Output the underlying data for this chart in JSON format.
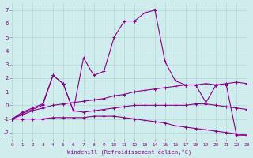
{
  "xlabel": "Windchill (Refroidissement éolien,°C)",
  "background_color": "#d0ecec",
  "line_color": "#880088",
  "xlim": [
    0,
    23
  ],
  "ylim": [
    -2.5,
    7.5
  ],
  "xticks": [
    0,
    1,
    2,
    3,
    4,
    5,
    6,
    7,
    8,
    9,
    10,
    11,
    12,
    13,
    14,
    15,
    16,
    17,
    18,
    19,
    20,
    21,
    22,
    23
  ],
  "yticks": [
    -2,
    -1,
    0,
    1,
    2,
    3,
    4,
    5,
    6,
    7
  ],
  "lines": [
    {
      "x": [
        0,
        1,
        2,
        3,
        4,
        5,
        6,
        7,
        8,
        9,
        10,
        11,
        12,
        13,
        14,
        15,
        16,
        17,
        18,
        19,
        20,
        21,
        22,
        23
      ],
      "y": [
        -1.0,
        -0.7,
        -0.4,
        -0.2,
        0.0,
        0.1,
        0.2,
        0.3,
        0.4,
        0.5,
        0.7,
        0.8,
        1.0,
        1.1,
        1.2,
        1.3,
        1.4,
        1.5,
        1.5,
        1.6,
        1.5,
        1.6,
        1.7,
        1.6
      ]
    },
    {
      "x": [
        0,
        1,
        2,
        3,
        4,
        5,
        6,
        7,
        8,
        9,
        10,
        11,
        12,
        13,
        14,
        15,
        16,
        17,
        18,
        19,
        20,
        21,
        22,
        23
      ],
      "y": [
        -1.0,
        -1.0,
        -1.0,
        -1.0,
        -0.9,
        -0.9,
        -0.9,
        -0.9,
        -0.8,
        -0.8,
        -0.8,
        -0.9,
        -1.0,
        -1.1,
        -1.2,
        -1.3,
        -1.5,
        -1.6,
        -1.7,
        -1.8,
        -1.9,
        -2.0,
        -2.1,
        -2.2
      ]
    },
    {
      "x": [
        0,
        1,
        2,
        3,
        4,
        5,
        6,
        7,
        8,
        9,
        10,
        11,
        12,
        13,
        14,
        15,
        16,
        17,
        18,
        19,
        20,
        21,
        22,
        23
      ],
      "y": [
        -1.0,
        -0.5,
        -0.2,
        0.1,
        2.2,
        1.6,
        -0.4,
        -0.5,
        -0.4,
        -0.3,
        -0.2,
        -0.1,
        0.0,
        0.0,
        0.0,
        0.0,
        0.0,
        0.0,
        0.1,
        0.1,
        0.0,
        -0.1,
        -0.2,
        -0.3
      ]
    },
    {
      "x": [
        0,
        1,
        2,
        3,
        4,
        5,
        6,
        7,
        8,
        9,
        10,
        11,
        12,
        13,
        14,
        15,
        16,
        17,
        18,
        19,
        20,
        21,
        22,
        23
      ],
      "y": [
        -1.0,
        -0.6,
        -0.3,
        0.0,
        2.2,
        1.6,
        -0.4,
        3.5,
        2.2,
        2.5,
        5.0,
        6.2,
        6.2,
        6.8,
        7.0,
        3.2,
        1.8,
        1.5,
        1.5,
        0.2,
        1.5,
        1.5,
        -2.2,
        -2.2
      ]
    }
  ]
}
